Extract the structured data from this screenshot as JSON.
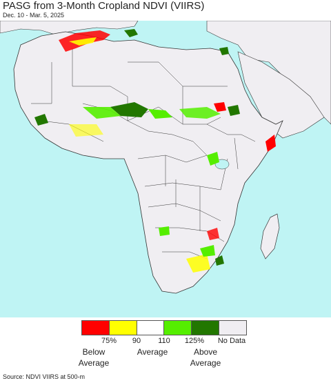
{
  "title": "PASG from 3-Month Cropland NDVI (VIIRS)",
  "subtitle": "Dec. 10 - Mar. 5, 2025",
  "map": {
    "ocean_color": "#bff4f4",
    "land_color": "#f0eef2",
    "border_color": "#333333"
  },
  "legend": {
    "swatches": [
      {
        "name": "below-75",
        "color": "#ff0000"
      },
      {
        "name": "75-90",
        "color": "#ffff00"
      },
      {
        "name": "90-110",
        "color": "#ffffff"
      },
      {
        "name": "110-125",
        "color": "#55ee00"
      },
      {
        "name": "above-125",
        "color": "#227700"
      },
      {
        "name": "no-data",
        "color": "#f0eef2"
      }
    ],
    "ticks": [
      "75%",
      "90",
      "110",
      "125%",
      "No Data"
    ],
    "below_label": "Below\nAverage",
    "average_label": "Average",
    "above_label": "Above\nAverage"
  },
  "source": "Source: NDVI VIIRS at 500-m"
}
